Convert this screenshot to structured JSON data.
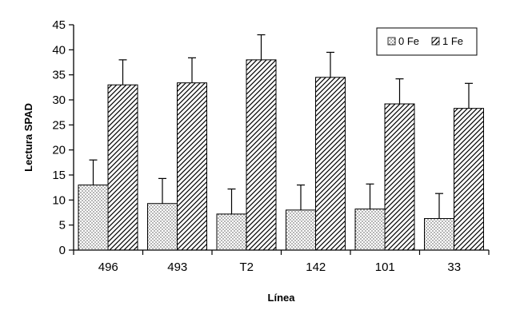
{
  "chart_data": {
    "type": "bar",
    "title": "",
    "xlabel": "Línea",
    "ylabel": "Lectura SPAD",
    "categories": [
      "496",
      "493",
      "T2",
      "142",
      "101",
      "33"
    ],
    "ylim": [
      0,
      45
    ],
    "yticks": [
      0,
      5,
      10,
      15,
      20,
      25,
      30,
      35,
      40,
      45
    ],
    "grid": false,
    "legend_position": "top-right",
    "series": [
      {
        "name": "0 Fe",
        "pattern": "dots",
        "values": [
          13.0,
          9.3,
          7.2,
          8.0,
          8.2,
          6.3
        ],
        "error": [
          5.0,
          5.0,
          5.0,
          5.0,
          5.0,
          5.0
        ]
      },
      {
        "name": "1 Fe",
        "pattern": "diagonal-hatch",
        "values": [
          33.0,
          33.4,
          38.0,
          34.5,
          29.2,
          28.3
        ],
        "error": [
          5.0,
          5.0,
          5.0,
          5.0,
          5.0,
          5.0
        ]
      }
    ]
  }
}
